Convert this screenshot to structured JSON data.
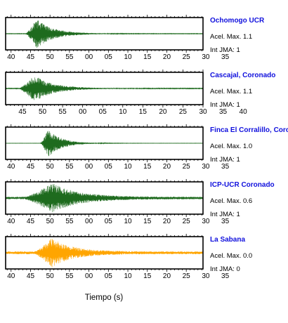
{
  "chart_data": {
    "type": "line",
    "xlabel": "Tiempo (s)",
    "panels": [
      {
        "station": "Ochomogo UCR",
        "acel": "Acel. Max. 1.1",
        "int": "Int JMA: 1",
        "tick_labels": [
          "40",
          "45",
          "50",
          "55",
          "00",
          "05",
          "10",
          "15",
          "20",
          "25",
          "30",
          "35"
        ],
        "color": "#1e6b1e",
        "x_start": 38.6,
        "x_end": 89.3,
        "signal": {
          "onset": 43.7,
          "peak": 46.5,
          "peak_amp": 0.95,
          "decay": 4.2,
          "noise": 0.015,
          "seed": 11
        }
      },
      {
        "station": "Cascajal, Coronado",
        "acel": "Acel. Max. 1.1",
        "int": "Int JMA: 1",
        "tick_labels": [
          "45",
          "50",
          "55",
          "00",
          "05",
          "10",
          "15",
          "20",
          "25",
          "30",
          "35",
          "40"
        ],
        "color": "#1e6b1e",
        "x_start": 40.8,
        "x_end": 90.0,
        "signal": {
          "onset": 44.0,
          "peak": 48.0,
          "peak_amp": 0.85,
          "decay": 4.6,
          "noise": 0.02,
          "seed": 23
        }
      },
      {
        "station": "Finca El Corralillo, Coronado",
        "acel": "Acel. Max. 1.0",
        "int": "Int JMA: 1",
        "tick_labels": [
          "40",
          "45",
          "50",
          "55",
          "00",
          "05",
          "10",
          "15",
          "20",
          "25",
          "30",
          "35"
        ],
        "color": "#1e6b1e",
        "x_start": 38.6,
        "x_end": 89.3,
        "signal": {
          "onset": 47.5,
          "peak": 49.5,
          "peak_amp": 0.9,
          "decay": 3.4,
          "noise": 0.008,
          "seed": 37
        }
      },
      {
        "station": "ICP-UCR Coronado",
        "acel": "Acel. Max. 0.6",
        "int": "Int JMA: 1",
        "tick_labels": [
          "40",
          "45",
          "50",
          "55",
          "00",
          "05",
          "10",
          "15",
          "20",
          "25",
          "30",
          "35"
        ],
        "color": "#1e6b1e",
        "x_start": 38.6,
        "x_end": 89.3,
        "signal": {
          "onset": 43.5,
          "peak": 50.5,
          "peak_amp": 0.9,
          "decay": 6.5,
          "noise": 0.08,
          "seed": 51
        }
      },
      {
        "station": "La Sabana",
        "acel": "Acel. Max. 0.0",
        "int": "Int JMA: 0",
        "tick_labels": [
          "40",
          "45",
          "50",
          "55",
          "00",
          "05",
          "10",
          "15",
          "20",
          "25",
          "30",
          "35"
        ],
        "color": "#ffa500",
        "x_start": 38.6,
        "x_end": 89.3,
        "signal": {
          "onset": 46.0,
          "peak": 50.5,
          "peak_amp": 0.9,
          "decay": 5.0,
          "noise": 0.09,
          "seed": 67
        }
      }
    ]
  }
}
